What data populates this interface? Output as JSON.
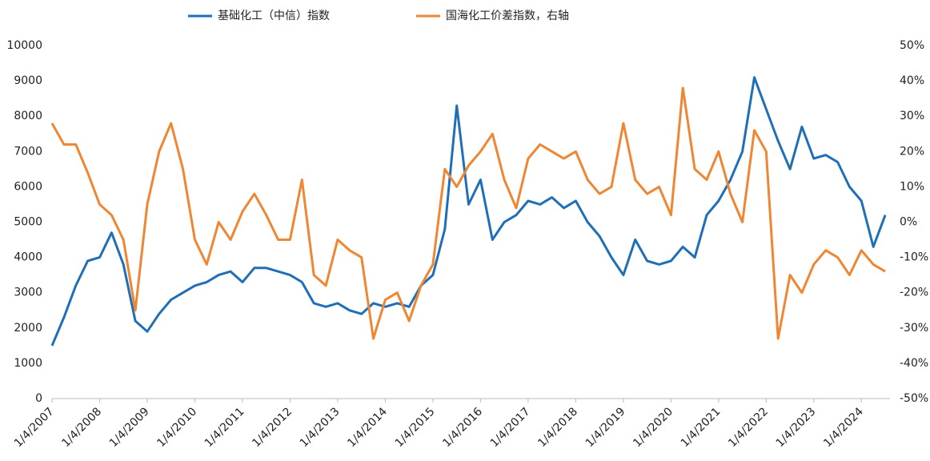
{
  "chart_data": {
    "type": "line",
    "x": [
      2007,
      2007.25,
      2007.5,
      2007.75,
      2008,
      2008.25,
      2008.5,
      2008.75,
      2009,
      2009.25,
      2009.5,
      2009.75,
      2010,
      2010.25,
      2010.5,
      2010.75,
      2011,
      2011.25,
      2011.5,
      2011.75,
      2012,
      2012.25,
      2012.5,
      2012.75,
      2013,
      2013.25,
      2013.5,
      2013.75,
      2014,
      2014.25,
      2014.5,
      2014.75,
      2015,
      2015.25,
      2015.5,
      2015.75,
      2016,
      2016.25,
      2016.5,
      2016.75,
      2017,
      2017.25,
      2017.5,
      2017.75,
      2018,
      2018.25,
      2018.5,
      2018.75,
      2019,
      2019.25,
      2019.5,
      2019.75,
      2020,
      2020.25,
      2020.5,
      2020.75,
      2021,
      2021.25,
      2021.5,
      2021.75,
      2022,
      2022.25,
      2022.5,
      2022.75,
      2023,
      2023.25,
      2023.5,
      2023.75,
      2024,
      2024.25,
      2024.5
    ],
    "series": [
      {
        "name": "基础化工（中信）指数",
        "color": "#1f6fb8",
        "values": [
          1500,
          2300,
          3200,
          3900,
          4000,
          4700,
          3800,
          2200,
          1900,
          2400,
          2800,
          3000,
          3200,
          3300,
          3500,
          3600,
          3300,
          3700,
          3700,
          3600,
          3500,
          3300,
          2700,
          2600,
          2700,
          2500,
          2400,
          2700,
          2600,
          2700,
          2600,
          3200,
          3500,
          4800,
          8300,
          5500,
          6200,
          4500,
          5000,
          5200,
          5600,
          5500,
          5700,
          5400,
          5600,
          5000,
          4600,
          4000,
          3500,
          4500,
          3900,
          3800,
          3900,
          4300,
          4000,
          5200,
          5600,
          6200,
          7000,
          9100,
          8200,
          7300,
          6500,
          7700,
          6800,
          6900,
          6700,
          6000,
          5600,
          4300,
          5200
        ]
      },
      {
        "name": "国海化工价差指数，右轴",
        "color": "#ee8633",
        "axis": "y2",
        "values": [
          28,
          22,
          22,
          14,
          5,
          2,
          -5,
          -25,
          5,
          20,
          28,
          15,
          -5,
          -12,
          0,
          -5,
          3,
          8,
          2,
          -5,
          -5,
          12,
          -15,
          -18,
          -5,
          -8,
          -10,
          -33,
          -22,
          -20,
          -28,
          -18,
          -12,
          15,
          10,
          16,
          20,
          25,
          12,
          4,
          18,
          22,
          20,
          18,
          20,
          12,
          8,
          10,
          28,
          12,
          8,
          10,
          2,
          38,
          15,
          12,
          20,
          8,
          0,
          26,
          20,
          -33,
          -15,
          -20,
          -12,
          -8,
          -10,
          -15,
          -8,
          -12,
          -14
        ]
      }
    ],
    "xlim": [
      2007,
      2024.6
    ],
    "xticks": [
      {
        "value": 2007,
        "label": "1/4/2007"
      },
      {
        "value": 2008,
        "label": "1/4/2008"
      },
      {
        "value": 2009,
        "label": "1/4/2009"
      },
      {
        "value": 2010,
        "label": "1/4/2010"
      },
      {
        "value": 2011,
        "label": "1/4/2011"
      },
      {
        "value": 2012,
        "label": "1/4/2012"
      },
      {
        "value": 2013,
        "label": "1/4/2013"
      },
      {
        "value": 2014,
        "label": "1/4/2014"
      },
      {
        "value": 2015,
        "label": "1/4/2015"
      },
      {
        "value": 2016,
        "label": "1/4/2016"
      },
      {
        "value": 2017,
        "label": "1/4/2017"
      },
      {
        "value": 2018,
        "label": "1/4/2018"
      },
      {
        "value": 2019,
        "label": "1/4/2019"
      },
      {
        "value": 2020,
        "label": "1/4/2020"
      },
      {
        "value": 2021,
        "label": "1/4/2021"
      },
      {
        "value": 2022,
        "label": "1/4/2022"
      },
      {
        "value": 2023,
        "label": "1/4/2023"
      },
      {
        "value": 2024,
        "label": "1/4/2024"
      }
    ],
    "ylim": [
      0,
      10000
    ],
    "yticks": [
      0,
      1000,
      2000,
      3000,
      4000,
      5000,
      6000,
      7000,
      8000,
      9000,
      10000
    ],
    "y2lim": [
      -50,
      50
    ],
    "y2ticks": [
      {
        "value": -50,
        "label": "-50%"
      },
      {
        "value": -40,
        "label": "-40%"
      },
      {
        "value": -30,
        "label": "-30%"
      },
      {
        "value": -20,
        "label": "-20%"
      },
      {
        "value": -10,
        "label": "-10%"
      },
      {
        "value": 0,
        "label": "0%"
      },
      {
        "value": 10,
        "label": "10%"
      },
      {
        "value": 20,
        "label": "20%"
      },
      {
        "value": 30,
        "label": "30%"
      },
      {
        "value": 40,
        "label": "40%"
      },
      {
        "value": 50,
        "label": "50%"
      }
    ]
  }
}
